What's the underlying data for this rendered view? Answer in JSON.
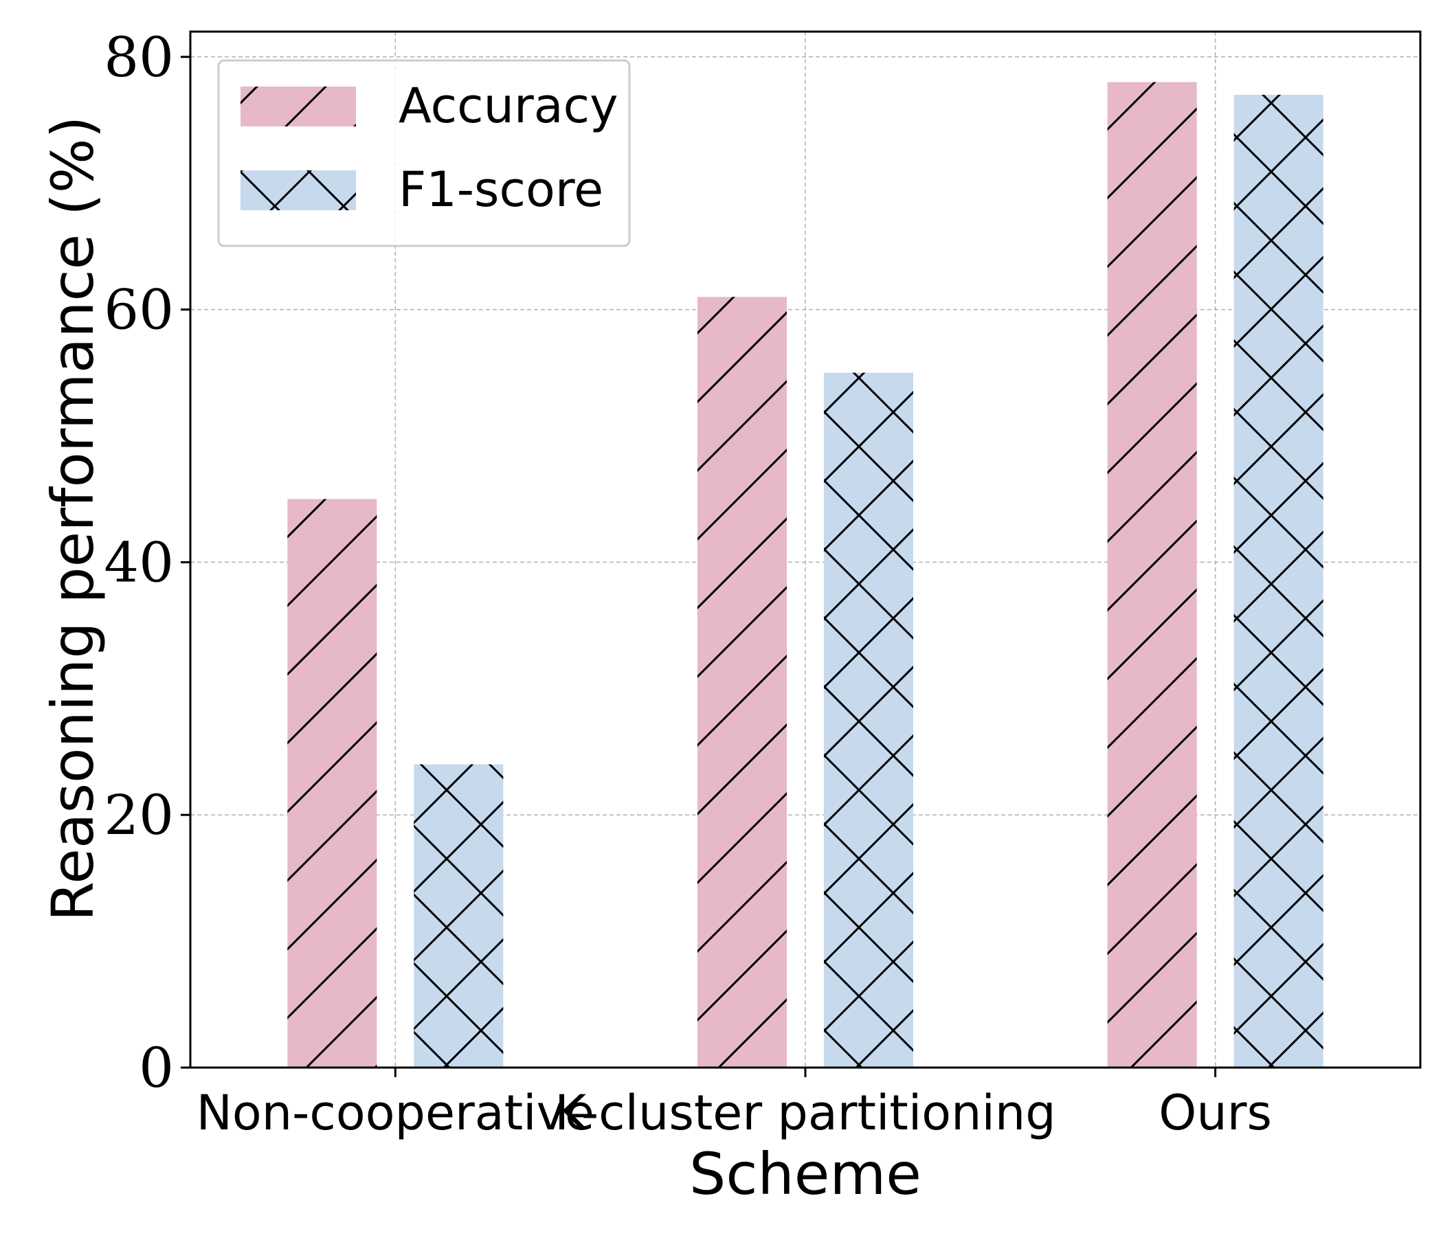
{
  "chart_data": {
    "type": "bar",
    "categories": [
      "Non-cooperative",
      "K-cluster partitioning",
      "Ours"
    ],
    "series": [
      {
        "name": "Accuracy",
        "values": [
          45,
          61,
          78
        ],
        "color": "#e6b8c8",
        "hatch": "forward-diagonal"
      },
      {
        "name": "F1-score",
        "values": [
          24,
          55,
          77
        ],
        "color": "#c6d9ed",
        "hatch": "cross-diagonal"
      }
    ],
    "xlabel": "Scheme",
    "ylabel": "Reasoning performance (%)",
    "ylim": [
      0,
      82
    ],
    "yticks": [
      0,
      20,
      40,
      60,
      80
    ],
    "grid": true,
    "legend_position": "top-left"
  }
}
